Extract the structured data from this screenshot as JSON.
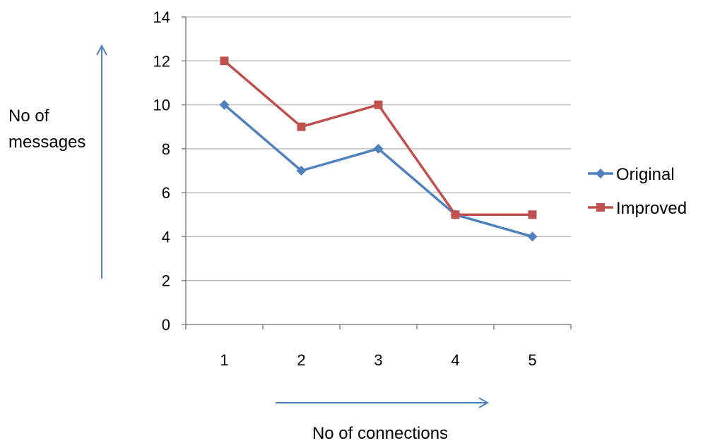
{
  "chart_data": {
    "type": "line",
    "title": "",
    "xlabel": "No of connections",
    "ylabel_lines": [
      "No of",
      "messages"
    ],
    "categories": [
      "1",
      "2",
      "3",
      "4",
      "5"
    ],
    "ylim": [
      0,
      14
    ],
    "yticks": [
      0,
      2,
      4,
      6,
      8,
      10,
      12,
      14
    ],
    "ytick_labels": [
      "0",
      "2",
      "4",
      "6",
      "8",
      "10",
      "12",
      "14"
    ],
    "grid": true,
    "legend_position": "right",
    "series": [
      {
        "name": "Original",
        "values": [
          10,
          7,
          8,
          5,
          4
        ],
        "color": "#4F81BD",
        "marker": "diamond"
      },
      {
        "name": "Improved",
        "values": [
          12,
          9,
          10,
          5,
          5
        ],
        "color": "#C0504D",
        "marker": "square"
      }
    ],
    "arrow_color": "#4F81BD",
    "grid_color": "#BFBFBF",
    "axis_color": "#868686"
  }
}
